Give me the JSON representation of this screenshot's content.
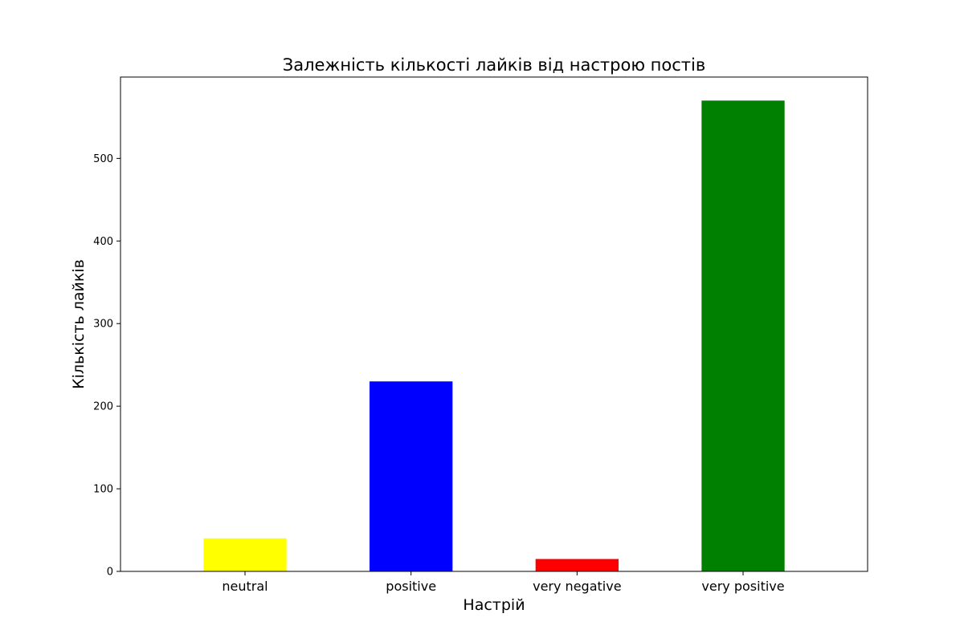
{
  "chart_data": {
    "type": "bar",
    "title": "Залежність кількості лайків від настрою постів",
    "xlabel": "Настрій",
    "ylabel": "Кількість лайків",
    "categories": [
      "neutral",
      "positive",
      "very negative",
      "very positive"
    ],
    "values": [
      40,
      230,
      15,
      570
    ],
    "colors": [
      "#ffff00",
      "#0000ff",
      "#ff0000",
      "#008000"
    ],
    "ylim": [
      0,
      598.5
    ],
    "yticks": [
      0,
      100,
      200,
      300,
      400,
      500
    ],
    "grid": false,
    "legend": "none"
  }
}
